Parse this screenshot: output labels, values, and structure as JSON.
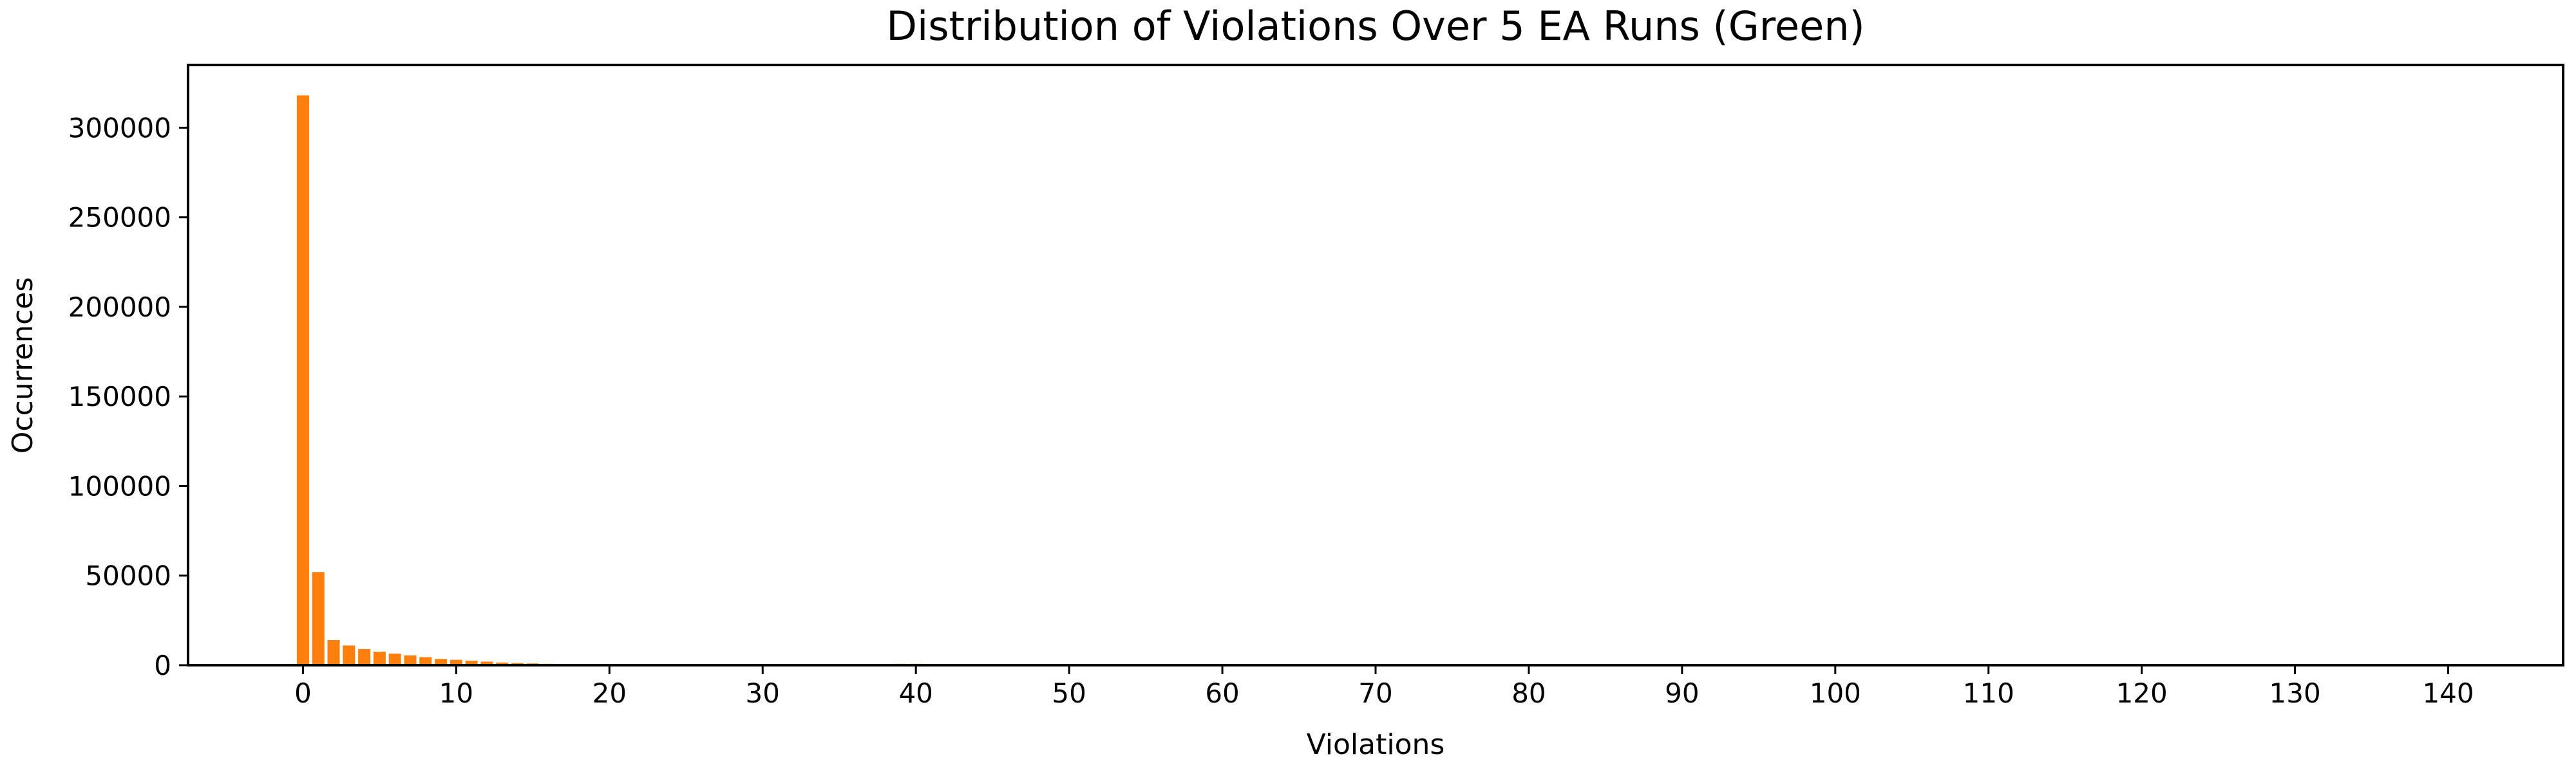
{
  "chart_data": {
    "type": "bar",
    "title": "Distribution of Violations Over 5 EA Runs (Green)",
    "xlabel": "Violations",
    "ylabel": "Occurrences",
    "bar_color": "#ff7f0e",
    "xlim": [
      -7.5,
      147.5
    ],
    "ylim": [
      0,
      335000
    ],
    "xticks": [
      0,
      10,
      20,
      30,
      40,
      50,
      60,
      70,
      80,
      90,
      100,
      110,
      120,
      130,
      140
    ],
    "xtick_labels": [
      "0",
      "10",
      "20",
      "30",
      "40",
      "50",
      "60",
      "70",
      "80",
      "90",
      "100",
      "110",
      "120",
      "130",
      "140"
    ],
    "yticks": [
      0,
      50000,
      100000,
      150000,
      200000,
      250000,
      300000
    ],
    "ytick_labels": [
      "0",
      "50000",
      "100000",
      "150000",
      "200000",
      "250000",
      "300000"
    ],
    "grid": false,
    "x": [
      0,
      1,
      2,
      3,
      4,
      5,
      6,
      7,
      8,
      9,
      10,
      11,
      12,
      13,
      14,
      15,
      16,
      17,
      18,
      19,
      20,
      21,
      22,
      23,
      24,
      25,
      26,
      27,
      28,
      29,
      30,
      31,
      32,
      33,
      34,
      35,
      36,
      37,
      38,
      39,
      40,
      41,
      42,
      43,
      44,
      45,
      46,
      47,
      48,
      49,
      50
    ],
    "values": [
      318000,
      52000,
      14000,
      11000,
      9000,
      7500,
      6500,
      5500,
      4500,
      3500,
      3000,
      2500,
      2000,
      1500,
      1200,
      1000,
      800,
      700,
      600,
      500,
      450,
      400,
      350,
      300,
      280,
      260,
      240,
      220,
      200,
      180,
      170,
      160,
      150,
      150,
      140,
      400,
      500,
      600,
      700,
      800,
      800,
      750,
      700,
      650,
      600,
      550,
      500,
      400,
      300,
      200,
      100
    ]
  }
}
